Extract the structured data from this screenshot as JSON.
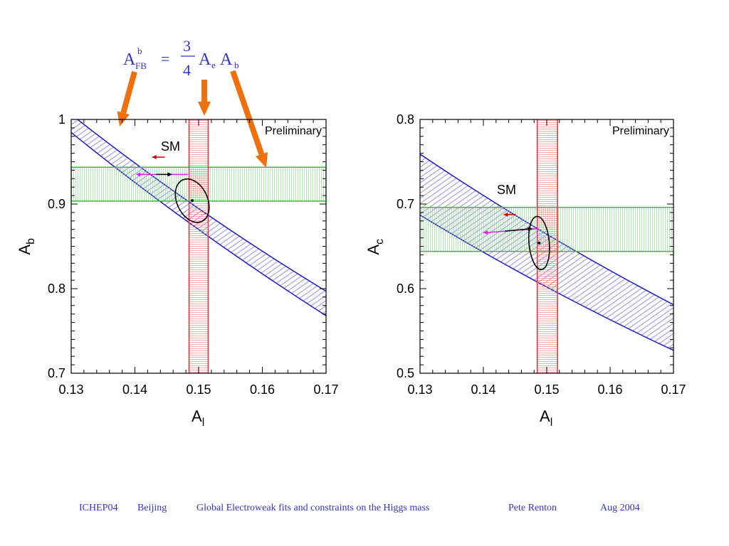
{
  "formula": {
    "lhs_main": "A",
    "lhs_sup": "b",
    "lhs_sub": "FB",
    "equals": "=",
    "numerator": "3",
    "denominator": "4",
    "t1_main": "A",
    "t1_sub": "e",
    "t2_main": "A",
    "t2_sub": "b",
    "color": "#3333cc"
  },
  "arrow_color": "#f07010",
  "footer": {
    "conference": "ICHEP04",
    "city": "Beijing",
    "title": "Global Electroweak fits and constraints on the Higgs mass",
    "author": "Pete Renton",
    "date": "Aug 2004"
  },
  "chart_data": [
    {
      "type": "band-constraint",
      "xlabel_main": "A",
      "xlabel_sub": "l",
      "ylabel_main": "A",
      "ylabel_sub": "b",
      "xlim": [
        0.13,
        0.17
      ],
      "ylim": [
        0.7,
        1.0
      ],
      "xticks": [
        "0.13",
        "0.14",
        "0.15",
        "0.16",
        "0.17"
      ],
      "yticks": [
        "0.7",
        "0.8",
        "0.9",
        "1"
      ],
      "annotation": "Preliminary",
      "sm_label": "SM",
      "vertical_band": {
        "range": [
          0.1485,
          0.1515
        ],
        "color": "#e83030"
      },
      "horizontal_band": {
        "range": [
          0.9035,
          0.9435
        ],
        "color": "#22cc22"
      },
      "diagonal_band": {
        "upper": [
          [
            0.131,
            1.0
          ],
          [
            0.17,
            0.797
          ]
        ],
        "lower": [
          [
            0.1275,
            1.0
          ],
          [
            0.17,
            0.768
          ]
        ],
        "color": "#1a1acc"
      },
      "ellipse": {
        "center": [
          0.149,
          0.904
        ],
        "rx": 0.0024,
        "ry": 0.027
      },
      "sm_arrows": [
        {
          "from": [
            0.1483,
            0.935
          ],
          "to": [
            0.1402,
            0.935
          ],
          "color": "#e020e0"
        },
        {
          "from": [
            0.1433,
            0.935
          ],
          "to": [
            0.1458,
            0.935
          ],
          "color": "#000000"
        },
        {
          "from": [
            0.1447,
            0.9555
          ],
          "to": [
            0.1427,
            0.9555
          ],
          "color": "#cc0000"
        }
      ]
    },
    {
      "type": "band-constraint",
      "xlabel_main": "A",
      "xlabel_sub": "l",
      "ylabel_main": "A",
      "ylabel_sub": "c",
      "xlim": [
        0.13,
        0.17
      ],
      "ylim": [
        0.5,
        0.8
      ],
      "xticks": [
        "0.13",
        "0.14",
        "0.15",
        "0.16",
        "0.17"
      ],
      "yticks": [
        "0.5",
        "0.6",
        "0.7",
        "0.8"
      ],
      "annotation": "Preliminary",
      "sm_label": "SM",
      "vertical_band": {
        "range": [
          0.1485,
          0.1517
        ],
        "color": "#e83030"
      },
      "horizontal_band": {
        "range": [
          0.644,
          0.696
        ],
        "color": "#22cc22"
      },
      "diagonal_band": {
        "upper": [
          [
            0.13,
            0.759
          ],
          [
            0.17,
            0.581
          ]
        ],
        "lower": [
          [
            0.13,
            0.687
          ],
          [
            0.17,
            0.527
          ]
        ],
        "color": "#1a1acc"
      },
      "ellipse": {
        "center": [
          0.1488,
          0.654
        ],
        "rx": 0.0016,
        "ry": 0.0315
      },
      "sm_arrows": [
        {
          "from": [
            0.1487,
            0.671
          ],
          "to": [
            0.14,
            0.666
          ],
          "color": "#e020e0"
        },
        {
          "from": [
            0.1434,
            0.668
          ],
          "to": [
            0.1477,
            0.671
          ],
          "color": "#000000"
        },
        {
          "from": [
            0.1451,
            0.6875
          ],
          "to": [
            0.1432,
            0.6875
          ],
          "color": "#cc0000"
        }
      ]
    }
  ]
}
